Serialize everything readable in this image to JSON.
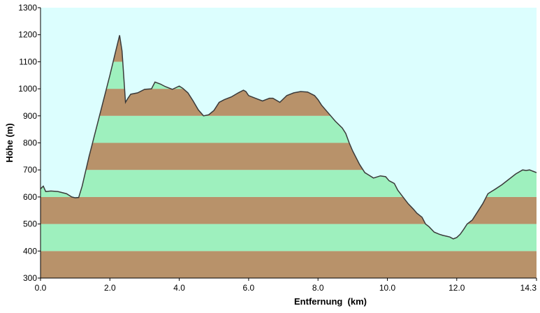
{
  "chart_data": {
    "type": "area",
    "title": "",
    "xlabel": "Entfernung  (km)",
    "ylabel": "Höhe (m)",
    "xlim": [
      0,
      14.3
    ],
    "ylim": [
      300,
      1300
    ],
    "x_ticks": [
      "0.0",
      "2.0",
      "4.0",
      "6.0",
      "8.0",
      "10.0",
      "12.0",
      "14.3"
    ],
    "x_tick_values": [
      0,
      2,
      4,
      6,
      8,
      10,
      12,
      14.3
    ],
    "y_ticks": [
      "300",
      "400",
      "500",
      "600",
      "700",
      "800",
      "900",
      "1000",
      "1100",
      "1200",
      "1300"
    ],
    "y_tick_values": [
      300,
      400,
      500,
      600,
      700,
      800,
      900,
      1000,
      1100,
      1200,
      1300
    ],
    "band_size": 100,
    "colors": {
      "sky": "#dcfefe",
      "band_brown": "#b8926a",
      "band_green": "#9ef0be",
      "line": "#3a3a3a",
      "axis": "#000000"
    },
    "series": [
      {
        "x": [
          0.0,
          0.08,
          0.15,
          0.3,
          0.5,
          0.75,
          0.9,
          1.0,
          1.1,
          1.2,
          1.4,
          1.6,
          1.8,
          2.0,
          2.15,
          2.28,
          2.35,
          2.45,
          2.52,
          2.6,
          2.8,
          3.0,
          3.2,
          3.3,
          3.45,
          3.6,
          3.8,
          4.0,
          4.1,
          4.25,
          4.4,
          4.55,
          4.7,
          4.85,
          5.0,
          5.15,
          5.3,
          5.5,
          5.7,
          5.85,
          5.92,
          6.0,
          6.2,
          6.4,
          6.6,
          6.7,
          6.9,
          7.1,
          7.3,
          7.5,
          7.7,
          7.9,
          8.0,
          8.1,
          8.3,
          8.5,
          8.7,
          8.8,
          8.9,
          9.0,
          9.2,
          9.35,
          9.45,
          9.6,
          9.8,
          9.95,
          10.05,
          10.2,
          10.3,
          10.45,
          10.6,
          10.75,
          10.85,
          11.0,
          11.1,
          11.2,
          11.35,
          11.5,
          11.6,
          11.7,
          11.8,
          11.9,
          12.0,
          12.1,
          12.2,
          12.3,
          12.45,
          12.6,
          12.75,
          12.9,
          13.0,
          13.1,
          13.3,
          13.5,
          13.7,
          13.9,
          14.0,
          14.1,
          14.2,
          14.3
        ],
        "y": [
          630,
          640,
          620,
          622,
          620,
          612,
          600,
          597,
          598,
          640,
          750,
          850,
          950,
          1050,
          1130,
          1198,
          1140,
          950,
          965,
          980,
          985,
          998,
          1000,
          1025,
          1018,
          1008,
          998,
          1010,
          1002,
          985,
          955,
          922,
          900,
          904,
          920,
          950,
          960,
          970,
          985,
          995,
          990,
          975,
          965,
          955,
          965,
          965,
          950,
          975,
          985,
          990,
          988,
          975,
          960,
          940,
          910,
          880,
          855,
          835,
          800,
          770,
          720,
          690,
          682,
          670,
          678,
          675,
          660,
          650,
          625,
          600,
          575,
          555,
          540,
          525,
          500,
          490,
          470,
          462,
          458,
          455,
          452,
          445,
          450,
          462,
          480,
          500,
          515,
          545,
          575,
          612,
          620,
          628,
          645,
          665,
          685,
          700,
          698,
          700,
          695,
          690
        ]
      }
    ]
  }
}
